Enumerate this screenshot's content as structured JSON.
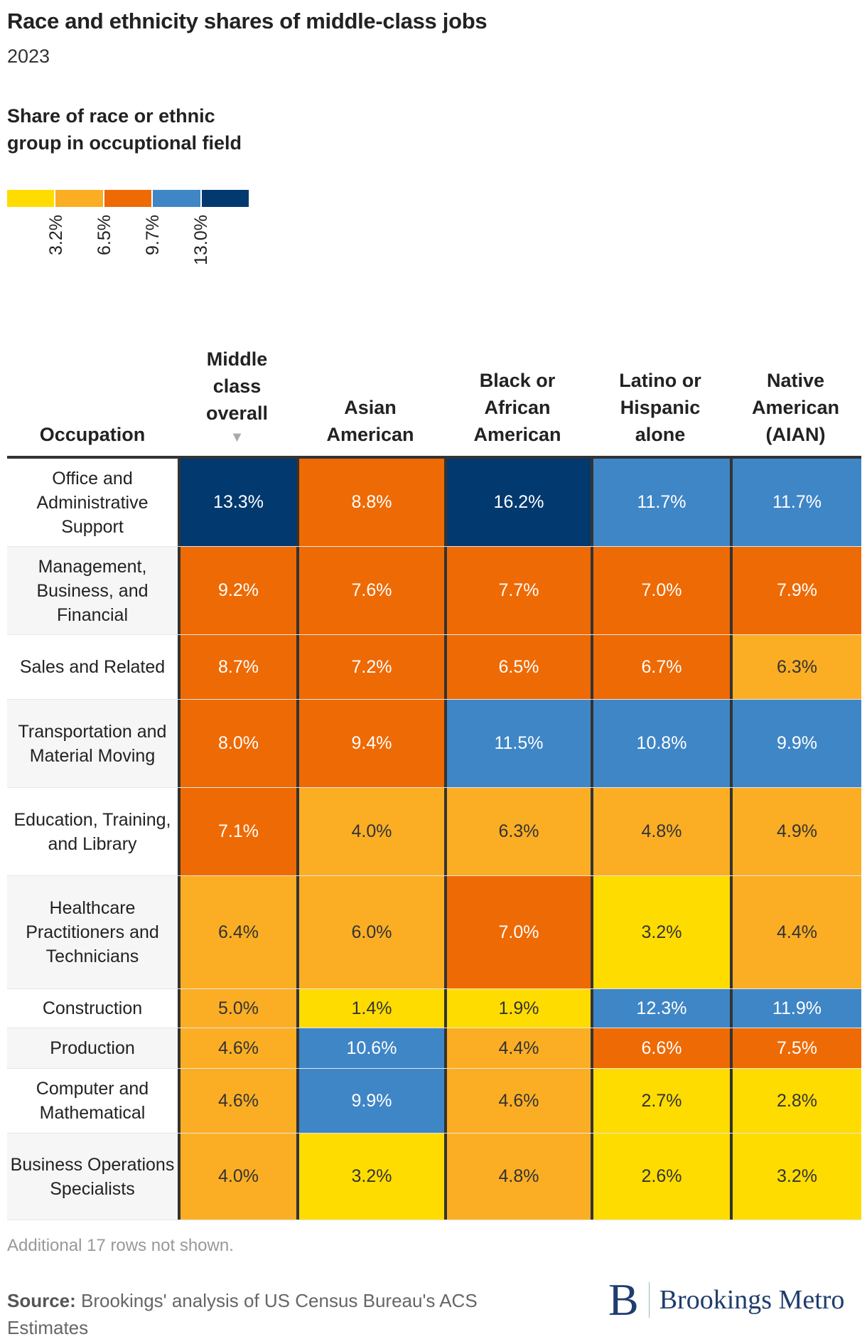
{
  "title": "Race and ethnicity shares of middle-class jobs",
  "subtitle": "2023",
  "legend": {
    "title": "Share of race or ethnic group in occuptional field",
    "colors": [
      "#ffdc00",
      "#fbae24",
      "#ee6a04",
      "#3f86c6",
      "#02396f"
    ],
    "ticks": [
      "3.2%",
      "6.5%",
      "9.7%",
      "13.0%"
    ]
  },
  "chart_data": {
    "type": "heatmap",
    "title": "Race and ethnicity shares of middle-class jobs",
    "subtitle": "2023",
    "row_header": "Occupation",
    "columns": [
      "Middle class overall",
      "Asian American",
      "Black or African American",
      "Latino or Hispanic alone",
      "Native American (AIAN)"
    ],
    "sort_indicator": "▼",
    "rows": [
      {
        "label": "Office and Administrative Support",
        "values": [
          13.3,
          8.8,
          16.2,
          11.7,
          11.7
        ]
      },
      {
        "label": "Management, Business, and Financial",
        "values": [
          9.2,
          7.6,
          7.7,
          7.0,
          7.9
        ]
      },
      {
        "label": "Sales and Related",
        "values": [
          8.7,
          7.2,
          6.5,
          6.7,
          6.3
        ]
      },
      {
        "label": "Transportation and Material Moving",
        "values": [
          8.0,
          9.4,
          11.5,
          10.8,
          9.9
        ]
      },
      {
        "label": "Education, Training, and Library",
        "values": [
          7.1,
          4.0,
          6.3,
          4.8,
          4.9
        ]
      },
      {
        "label": "Healthcare Practitioners and Technicians",
        "values": [
          6.4,
          6.0,
          7.0,
          3.2,
          4.4
        ]
      },
      {
        "label": "Construction",
        "values": [
          5.0,
          1.4,
          1.9,
          12.3,
          11.9
        ]
      },
      {
        "label": "Production",
        "values": [
          4.6,
          10.6,
          4.4,
          6.6,
          7.5
        ]
      },
      {
        "label": "Computer and Mathematical",
        "values": [
          4.6,
          9.9,
          4.6,
          2.7,
          2.8
        ]
      },
      {
        "label": "Business Operations Specialists",
        "values": [
          4.0,
          3.2,
          4.8,
          2.6,
          3.2
        ]
      }
    ],
    "unit": "%"
  },
  "note": "Additional 17 rows not shown.",
  "source": {
    "label": "Source:",
    "text": " Brookings' analysis of US Census Bureau's ACS Estimates"
  },
  "logo": {
    "mark": "B",
    "text": "Brookings Metro"
  }
}
